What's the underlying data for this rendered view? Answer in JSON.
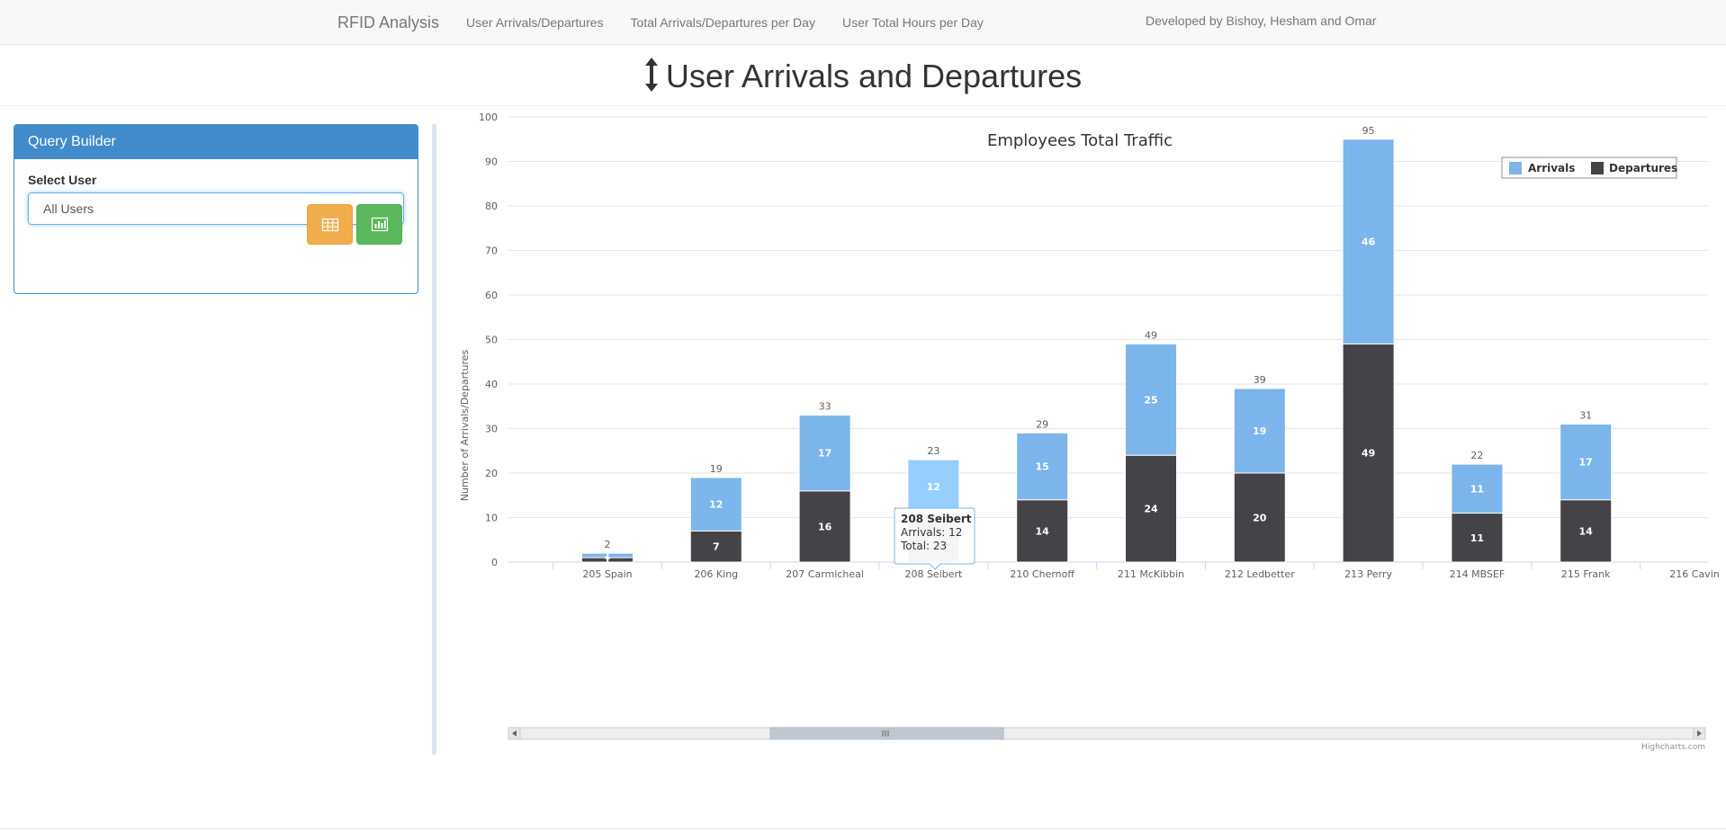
{
  "nav": {
    "brand": "RFID Analysis",
    "links": [
      "User Arrivals/Departures",
      "Total Arrivals/Departures per Day",
      "User Total Hours per Day"
    ],
    "credit": "Developed by Bishoy, Hesham and Omar"
  },
  "page": {
    "title": "User Arrivals and Departures"
  },
  "query_builder": {
    "heading": "Query Builder",
    "select_label": "Select User",
    "select_value": "All Users",
    "buttons": [
      "table-icon",
      "bar-chart-icon"
    ]
  },
  "colors": {
    "arrivals": "#7cb5ec",
    "arrivals_hover": "#95ceff",
    "departures": "#434348",
    "panel": "#428bca"
  },
  "chart_data": {
    "type": "bar",
    "stacked": true,
    "title": "Employees Total Traffic",
    "ylabel": "Number of Arrivals/Departures",
    "xlabel": "",
    "ylim": [
      0,
      100
    ],
    "yticks": [
      0,
      10,
      20,
      30,
      40,
      50,
      60,
      70,
      80,
      90,
      100
    ],
    "grid": true,
    "legend_position": "top-right",
    "categories": [
      "205 Spain",
      "206 King",
      "207 Carmicheal",
      "208 Seibert",
      "210 Chernoff",
      "211 McKibbin",
      "212 Ledbetter",
      "213 Perry",
      "214 MBSEF",
      "215 Frank",
      "216 Cavin"
    ],
    "series": [
      {
        "name": "Arrivals",
        "values": [
          1,
          12,
          17,
          12,
          15,
          25,
          19,
          46,
          11,
          17,
          null
        ]
      },
      {
        "name": "Departures",
        "values": [
          1,
          7,
          16,
          11,
          14,
          24,
          20,
          49,
          11,
          14,
          null
        ]
      }
    ],
    "totals": [
      2,
      19,
      33,
      23,
      29,
      49,
      39,
      95,
      22,
      31,
      null
    ],
    "tooltip": {
      "title": "208 Seibert",
      "line1": "Arrivals: 12",
      "line2": "Total: 23"
    },
    "credits": "Highcharts.com"
  }
}
